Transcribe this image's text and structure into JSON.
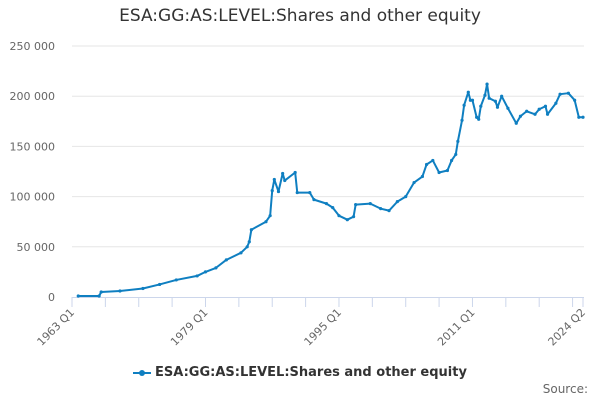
{
  "chart_data": {
    "type": "line",
    "title": "ESA:GG:AS:LEVEL:Shares and other equity",
    "xlabel": "",
    "ylabel": "",
    "ylim": [
      0,
      250000
    ],
    "yticks": [
      "0",
      "50 000",
      "100 000",
      "150 000",
      "200 000",
      "250 000"
    ],
    "xlim": [
      "1963 Q1",
      "2024 Q2"
    ],
    "xtick_labels": [
      "1963 Q1",
      "1979 Q1",
      "1995 Q1",
      "2011 Q1",
      "2024 Q2"
    ],
    "grid": "horizontal",
    "legend_position": "bottom",
    "color": "#0f7fc1",
    "series": [
      {
        "name": "ESA:GG:AS:LEVEL:Shares and other equity",
        "points": [
          [
            "1963 Q4",
            1000
          ],
          [
            "1966 Q2",
            1000
          ],
          [
            "1966 Q3",
            5000
          ],
          [
            "1968 Q4",
            6000
          ],
          [
            "1971 Q3",
            8500
          ],
          [
            "1973 Q3",
            12500
          ],
          [
            "1975 Q3",
            17000
          ],
          [
            "1978 Q1",
            21000
          ],
          [
            "1979 Q1",
            25000
          ],
          [
            "1980 Q2",
            29000
          ],
          [
            "1981 Q3",
            37000
          ],
          [
            "1983 Q2",
            44000
          ],
          [
            "1984 Q1",
            50000
          ],
          [
            "1984 Q2",
            55000
          ],
          [
            "1984 Q3",
            67000
          ],
          [
            "1986 Q2",
            75000
          ],
          [
            "1986 Q4",
            81000
          ],
          [
            "1987 Q1",
            106000
          ],
          [
            "1987 Q2",
            117000
          ],
          [
            "1987 Q4",
            105000
          ],
          [
            "1988 Q2",
            123000
          ],
          [
            "1988 Q3",
            116000
          ],
          [
            "1989 Q4",
            124000
          ],
          [
            "1990 Q1",
            104000
          ],
          [
            "1991 Q3",
            104000
          ],
          [
            "1992 Q1",
            97000
          ],
          [
            "1993 Q3",
            93000
          ],
          [
            "1994 Q2",
            89000
          ],
          [
            "1995 Q1",
            81000
          ],
          [
            "1996 Q1",
            77000
          ],
          [
            "1996 Q4",
            80000
          ],
          [
            "1997 Q1",
            92000
          ],
          [
            "1998 Q4",
            93000
          ],
          [
            "2000 Q1",
            88000
          ],
          [
            "2001 Q1",
            86000
          ],
          [
            "2002 Q1",
            95000
          ],
          [
            "2003 Q1",
            100000
          ],
          [
            "2004 Q1",
            114000
          ],
          [
            "2005 Q1",
            120000
          ],
          [
            "2005 Q3",
            132000
          ],
          [
            "2006 Q2",
            136000
          ],
          [
            "2007 Q1",
            124000
          ],
          [
            "2008 Q1",
            126000
          ],
          [
            "2008 Q3",
            136000
          ],
          [
            "2009 Q1",
            142000
          ],
          [
            "2009 Q2",
            155000
          ],
          [
            "2009 Q4",
            176000
          ],
          [
            "2010 Q1",
            191000
          ],
          [
            "2010 Q3",
            204000
          ],
          [
            "2010 Q4",
            196000
          ],
          [
            "2011 Q1",
            196000
          ],
          [
            "2011 Q3",
            179000
          ],
          [
            "2011 Q4",
            177000
          ],
          [
            "2012 Q1",
            190000
          ],
          [
            "2012 Q3",
            201000
          ],
          [
            "2012 Q4",
            212000
          ],
          [
            "2013 Q1",
            198000
          ],
          [
            "2013 Q4",
            195000
          ],
          [
            "2014 Q1",
            189000
          ],
          [
            "2014 Q3",
            200000
          ],
          [
            "2015 Q2",
            188000
          ],
          [
            "2016 Q2",
            173000
          ],
          [
            "2016 Q4",
            180000
          ],
          [
            "2017 Q3",
            185000
          ],
          [
            "2018 Q3",
            182000
          ],
          [
            "2019 Q1",
            187000
          ],
          [
            "2019 Q4",
            190000
          ],
          [
            "2020 Q1",
            182000
          ],
          [
            "2021 Q1",
            193000
          ],
          [
            "2021 Q3",
            202000
          ],
          [
            "2022 Q3",
            203000
          ],
          [
            "2023 Q2",
            196000
          ],
          [
            "2023 Q4",
            179000
          ],
          [
            "2024 Q2",
            179000
          ]
        ]
      }
    ]
  },
  "legend": {
    "label": "ESA:GG:AS:LEVEL:Shares and other equity"
  },
  "source": {
    "label": "Source:"
  }
}
